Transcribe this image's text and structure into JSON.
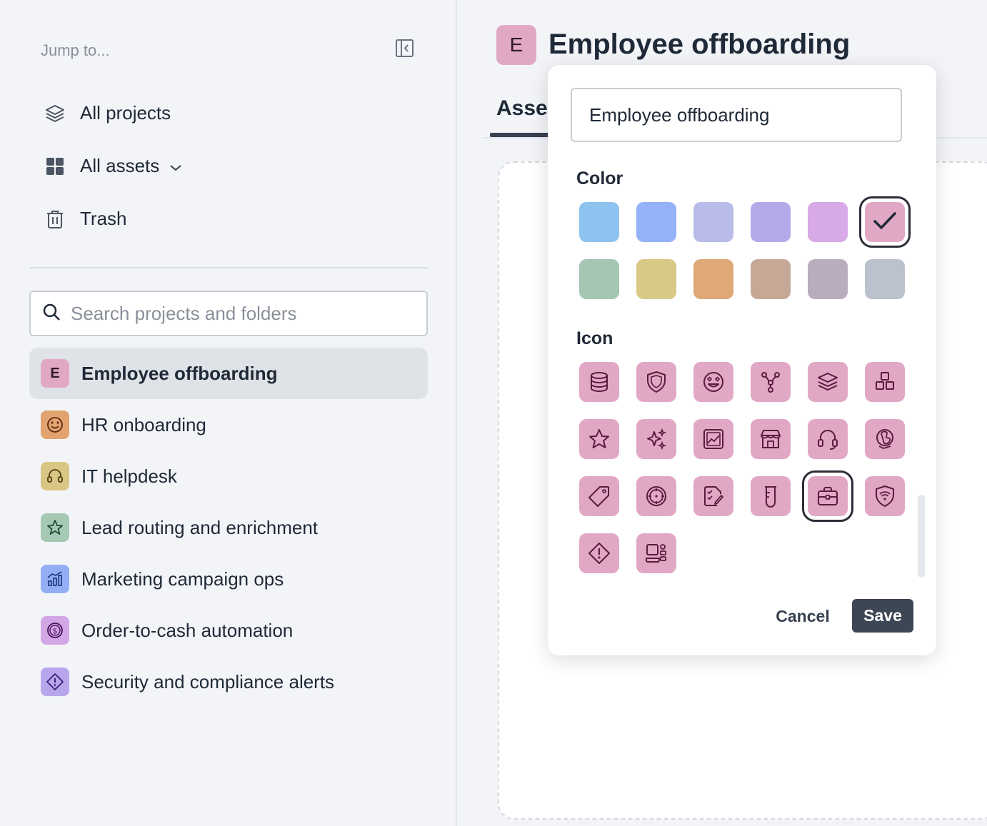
{
  "sidebar": {
    "jump_to": "Jump to...",
    "nav": [
      {
        "label": "All projects",
        "icon": "layers-icon"
      },
      {
        "label": "All assets",
        "icon": "grid-icon"
      },
      {
        "label": "Trash",
        "icon": "trash-icon"
      }
    ],
    "search": {
      "placeholder": "Search projects and folders",
      "value": ""
    },
    "projects": [
      {
        "label": "Employee offboarding",
        "badge": "E",
        "color": "#e1a8c6",
        "active": true
      },
      {
        "label": "HR onboarding",
        "icon": "star-struck-face-icon",
        "color": "#e2a36e"
      },
      {
        "label": "IT helpdesk",
        "icon": "headset-icon",
        "color": "#d9c684"
      },
      {
        "label": "Lead routing and enrichment",
        "icon": "star-icon",
        "color": "#a6c9b4"
      },
      {
        "label": "Marketing campaign ops",
        "icon": "chart-growth-icon",
        "color": "#93aef5"
      },
      {
        "label": "Order-to-cash automation",
        "icon": "dollar-coin-icon",
        "color": "#d3a6e6"
      },
      {
        "label": "Security and compliance alerts",
        "icon": "alert-diamond-icon",
        "color": "#b8a6ec"
      }
    ]
  },
  "main": {
    "badge": "E",
    "title": "Employee offboarding",
    "tab": "Asset"
  },
  "popover": {
    "name_value": "Employee offboarding",
    "color_label": "Color",
    "icon_label": "Icon",
    "colors": [
      "#8ec2ef",
      "#93b2f7",
      "#b9bbe8",
      "#b6a9e9",
      "#d7a9e6",
      "#e1a8c6",
      "#a4c6b2",
      "#d9c987",
      "#dea877",
      "#c6a897",
      "#b9adbd",
      "#bcc2cd"
    ],
    "selected_color": "#e1a8c6",
    "icons": [
      "database-icon",
      "shield-icon",
      "star-struck-face-icon",
      "workflow-icon",
      "layers-icon",
      "cubes-icon",
      "star-icon",
      "sparkles-icon",
      "image-chart-icon",
      "storefront-icon",
      "headset-icon",
      "support-hand-icon",
      "tag-icon",
      "target-icon",
      "checklist-edit-icon",
      "beaker-icon",
      "briefcase-icon",
      "wifi-shield-icon",
      "alert-diamond-icon",
      "devices-icon"
    ],
    "selected_icon": "briefcase-icon",
    "cancel_label": "Cancel",
    "save_label": "Save"
  }
}
